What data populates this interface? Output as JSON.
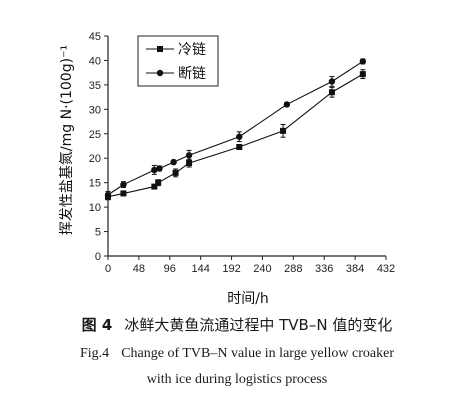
{
  "chart_data": {
    "type": "line",
    "xlabel": "时间/h",
    "ylabel": "挥发性盐基氮/mg N·(100g)⁻¹",
    "xlim": [
      0,
      432
    ],
    "ylim": [
      0,
      45
    ],
    "xticks": [
      0,
      48,
      96,
      144,
      192,
      240,
      288,
      336,
      384,
      432
    ],
    "yticks": [
      0,
      5,
      10,
      15,
      20,
      25,
      30,
      35,
      40,
      45
    ],
    "legend_position": "top-left",
    "series": [
      {
        "name": "冷链",
        "marker": "square",
        "x": [
          0,
          24,
          72,
          78,
          105,
          126,
          204,
          272,
          348,
          396
        ],
        "y": [
          12.1,
          12.8,
          14.2,
          15.0,
          17.0,
          19.0,
          22.3,
          25.6,
          33.5,
          37.2
        ],
        "err": [
          0.6,
          0.4,
          0.4,
          0.6,
          0.8,
          0.8,
          0.5,
          1.3,
          1.0,
          0.9
        ]
      },
      {
        "name": "断链",
        "marker": "circle",
        "x": [
          0,
          24,
          72,
          80,
          102,
          126,
          204,
          278,
          348,
          396
        ],
        "y": [
          12.5,
          14.6,
          17.6,
          17.9,
          19.2,
          20.6,
          24.4,
          31.0,
          35.7,
          39.8
        ],
        "err": [
          0.7,
          0.6,
          0.9,
          0.5,
          0.4,
          1.0,
          1.0,
          0.3,
          1.0,
          0.5
        ]
      }
    ]
  },
  "caption": {
    "zh_fig": "图 4",
    "zh_text": "冰鲜大黄鱼流通过程中 TVB–N 值的变化",
    "en_fig": "Fig.4",
    "en_line1": "Change of TVB–N value in large yellow croaker",
    "en_line2": "with ice during logistics process"
  }
}
